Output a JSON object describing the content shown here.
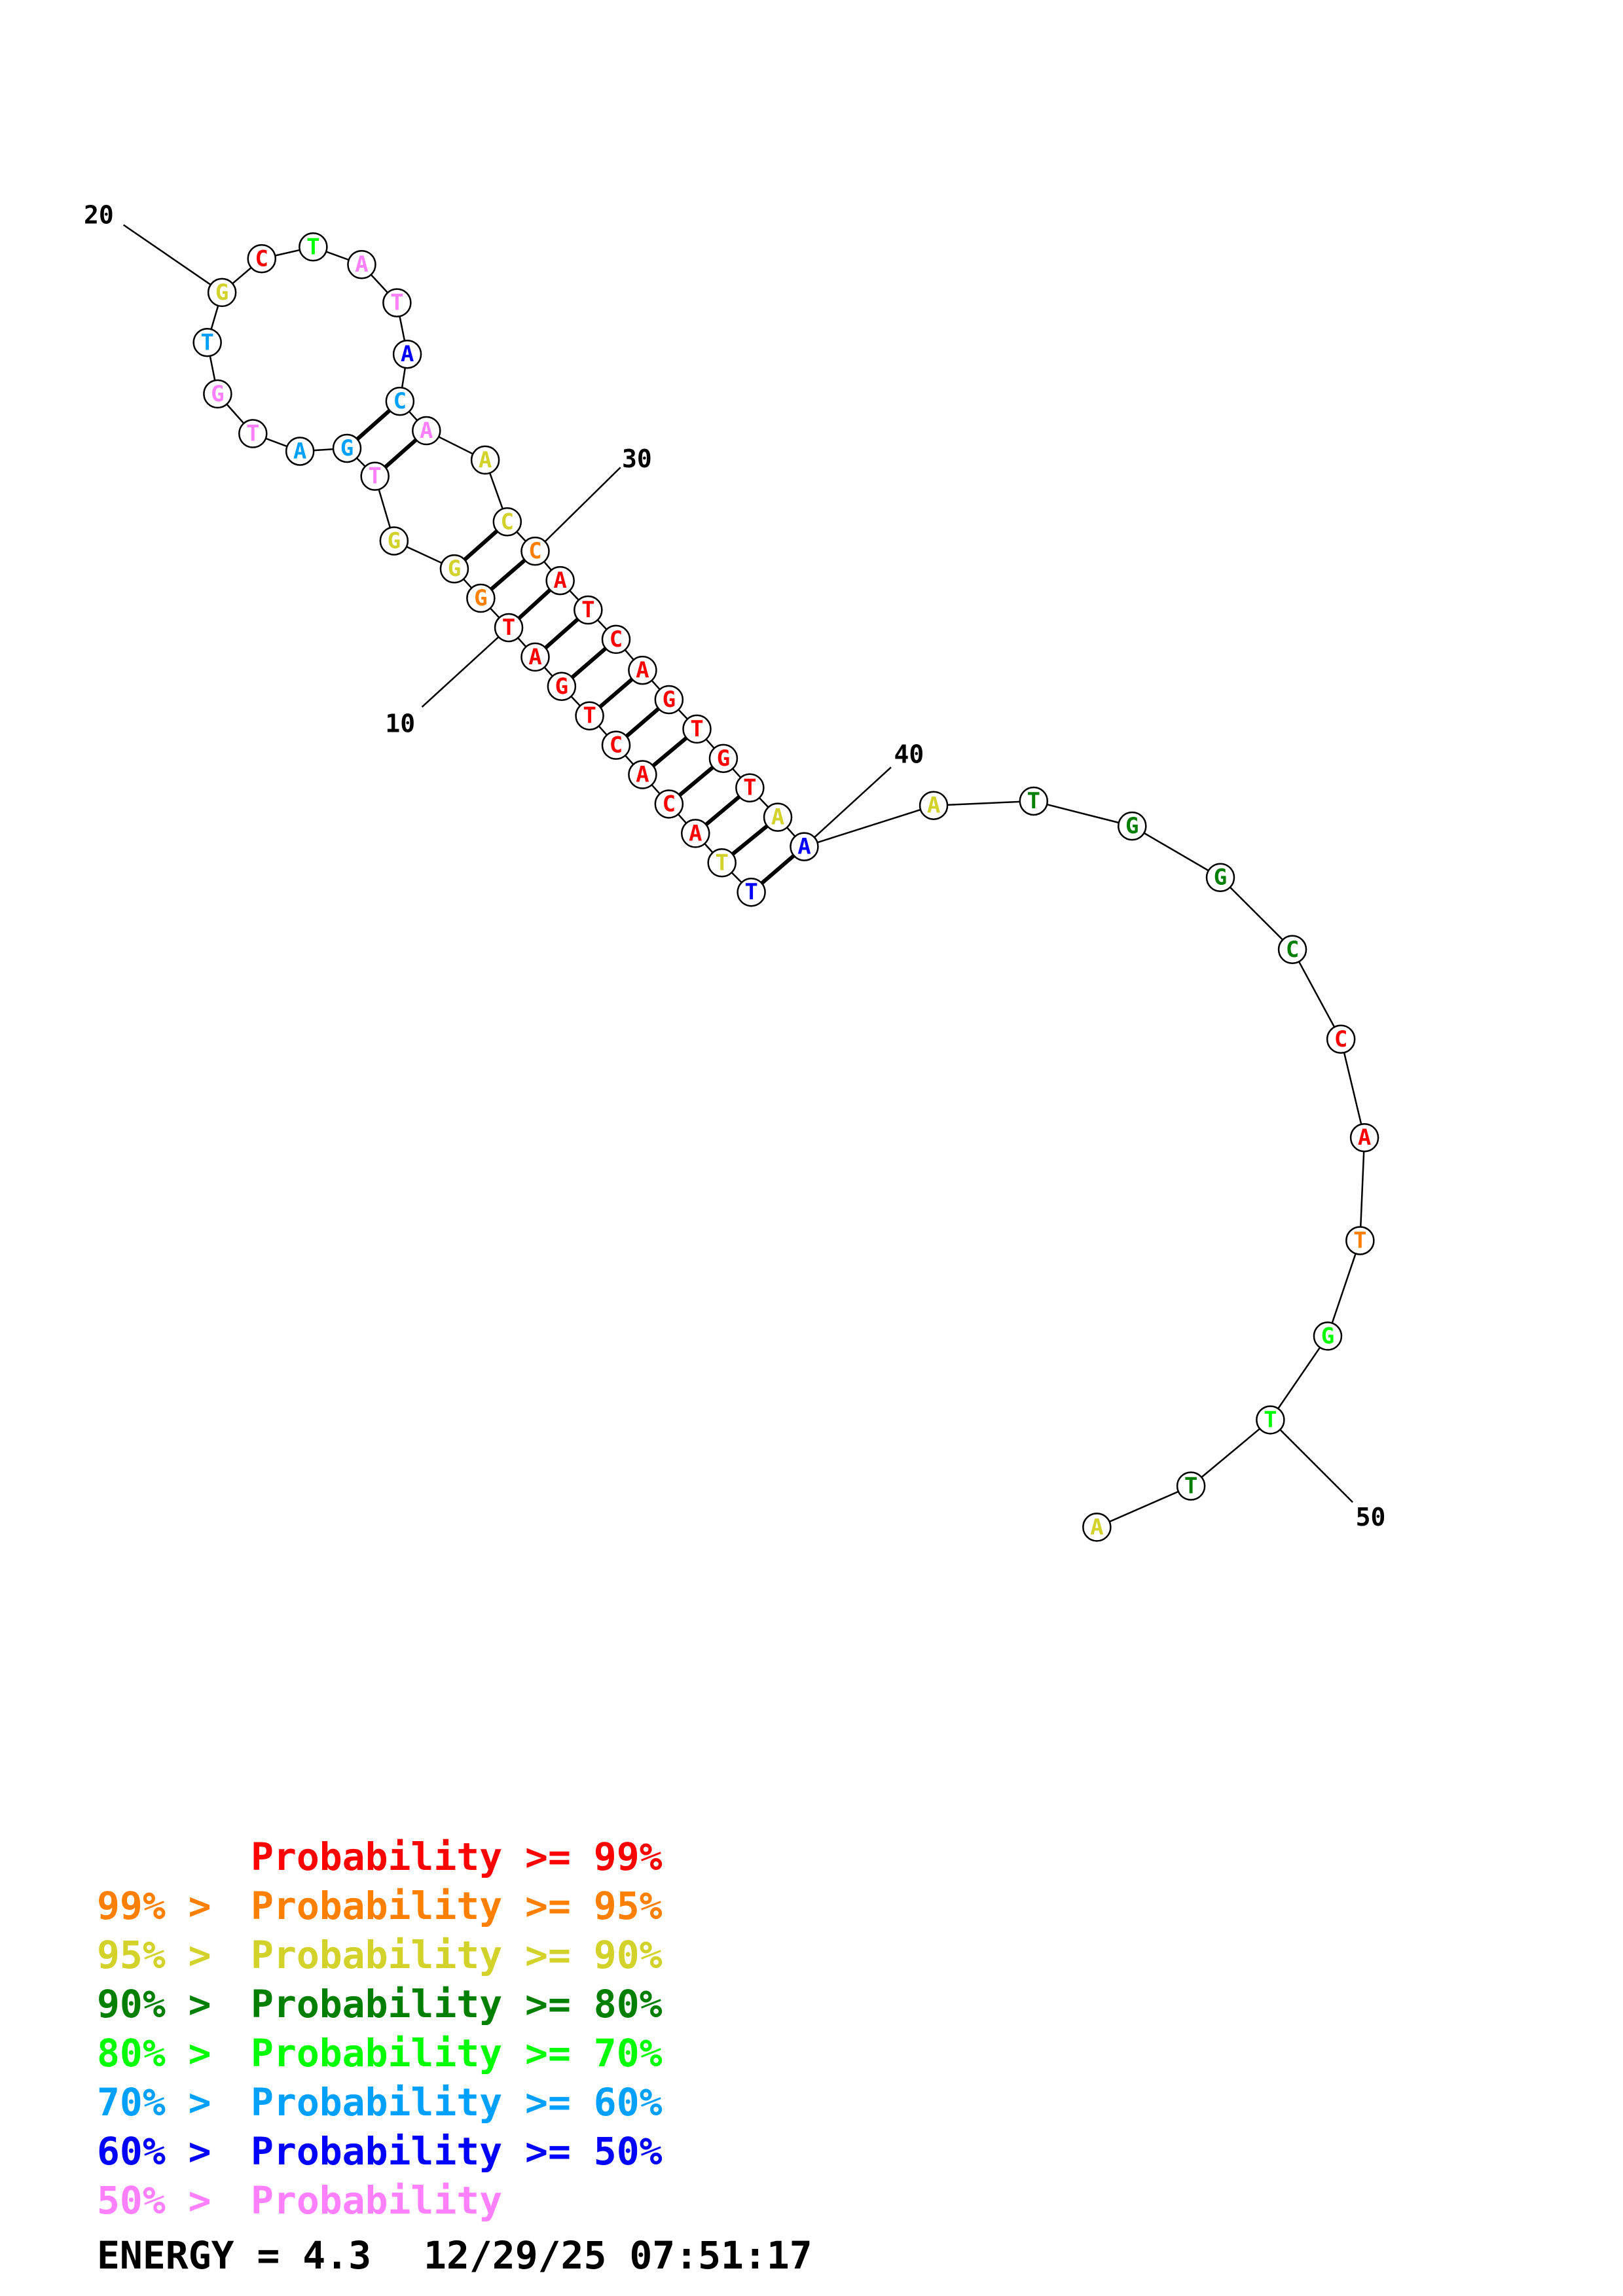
{
  "colors": {
    "p99": "#ff0000",
    "p95": "#ff7f00",
    "p90": "#d2d22a",
    "p80": "#007f00",
    "p70": "#00ff00",
    "p60": "#00a0ff",
    "p50": "#0000ff",
    "plow": "#ff80ff"
  },
  "nucleotides": [
    {
      "i": 1,
      "base": "T",
      "conf": "p50"
    },
    {
      "i": 2,
      "base": "T",
      "conf": "p90"
    },
    {
      "i": 3,
      "base": "A",
      "conf": "p99"
    },
    {
      "i": 4,
      "base": "C",
      "conf": "p99"
    },
    {
      "i": 5,
      "base": "A",
      "conf": "p99"
    },
    {
      "i": 6,
      "base": "C",
      "conf": "p99"
    },
    {
      "i": 7,
      "base": "T",
      "conf": "p99"
    },
    {
      "i": 8,
      "base": "G",
      "conf": "p99"
    },
    {
      "i": 9,
      "base": "A",
      "conf": "p99"
    },
    {
      "i": 10,
      "base": "T",
      "conf": "p99"
    },
    {
      "i": 11,
      "base": "G",
      "conf": "p95"
    },
    {
      "i": 12,
      "base": "G",
      "conf": "p90"
    },
    {
      "i": 13,
      "base": "G",
      "conf": "p90"
    },
    {
      "i": 14,
      "base": "T",
      "conf": "plow"
    },
    {
      "i": 15,
      "base": "G",
      "conf": "p60"
    },
    {
      "i": 16,
      "base": "A",
      "conf": "p60"
    },
    {
      "i": 17,
      "base": "T",
      "conf": "plow"
    },
    {
      "i": 18,
      "base": "G",
      "conf": "plow"
    },
    {
      "i": 19,
      "base": "T",
      "conf": "p60"
    },
    {
      "i": 20,
      "base": "G",
      "conf": "p90"
    },
    {
      "i": 21,
      "base": "C",
      "conf": "p99"
    },
    {
      "i": 22,
      "base": "T",
      "conf": "p70"
    },
    {
      "i": 23,
      "base": "A",
      "conf": "plow"
    },
    {
      "i": 24,
      "base": "T",
      "conf": "plow"
    },
    {
      "i": 25,
      "base": "A",
      "conf": "p50"
    },
    {
      "i": 26,
      "base": "C",
      "conf": "p60"
    },
    {
      "i": 27,
      "base": "A",
      "conf": "plow"
    },
    {
      "i": 28,
      "base": "A",
      "conf": "p90"
    },
    {
      "i": 29,
      "base": "C",
      "conf": "p90"
    },
    {
      "i": 30,
      "base": "C",
      "conf": "p95"
    },
    {
      "i": 31,
      "base": "A",
      "conf": "p99"
    },
    {
      "i": 32,
      "base": "T",
      "conf": "p99"
    },
    {
      "i": 33,
      "base": "C",
      "conf": "p99"
    },
    {
      "i": 34,
      "base": "A",
      "conf": "p99"
    },
    {
      "i": 35,
      "base": "G",
      "conf": "p99"
    },
    {
      "i": 36,
      "base": "T",
      "conf": "p99"
    },
    {
      "i": 37,
      "base": "G",
      "conf": "p99"
    },
    {
      "i": 38,
      "base": "T",
      "conf": "p99"
    },
    {
      "i": 39,
      "base": "A",
      "conf": "p90"
    },
    {
      "i": 40,
      "base": "A",
      "conf": "p50"
    },
    {
      "i": 41,
      "base": "A",
      "conf": "p90"
    },
    {
      "i": 42,
      "base": "T",
      "conf": "p80"
    },
    {
      "i": 43,
      "base": "G",
      "conf": "p80"
    },
    {
      "i": 44,
      "base": "G",
      "conf": "p80"
    },
    {
      "i": 45,
      "base": "C",
      "conf": "p80"
    },
    {
      "i": 46,
      "base": "C",
      "conf": "p99"
    },
    {
      "i": 47,
      "base": "A",
      "conf": "p99"
    },
    {
      "i": 48,
      "base": "T",
      "conf": "p95"
    },
    {
      "i": 49,
      "base": "G",
      "conf": "p70"
    },
    {
      "i": 50,
      "base": "T",
      "conf": "p70"
    },
    {
      "i": 51,
      "base": "T",
      "conf": "p80"
    },
    {
      "i": 52,
      "base": "A",
      "conf": "p90"
    }
  ],
  "pairs": [
    [
      1,
      40
    ],
    [
      2,
      39
    ],
    [
      3,
      38
    ],
    [
      4,
      37
    ],
    [
      5,
      36
    ],
    [
      6,
      35
    ],
    [
      7,
      34
    ],
    [
      8,
      33
    ],
    [
      9,
      32
    ],
    [
      10,
      31
    ],
    [
      11,
      30
    ],
    [
      12,
      29
    ],
    [
      14,
      27
    ],
    [
      15,
      26
    ]
  ],
  "position_labels": [
    {
      "pos": 10,
      "text": "10"
    },
    {
      "pos": 20,
      "text": "20"
    },
    {
      "pos": 30,
      "text": "30"
    },
    {
      "pos": 40,
      "text": "40"
    },
    {
      "pos": 50,
      "text": "50"
    }
  ],
  "legend": [
    {
      "prefix": "",
      "label": "Probability >= 99%",
      "color": "p99"
    },
    {
      "prefix": "99% > ",
      "label": "Probability >= 95%",
      "color": "p95"
    },
    {
      "prefix": "95% > ",
      "label": "Probability >= 90%",
      "color": "p90"
    },
    {
      "prefix": "90% > ",
      "label": "Probability >= 80%",
      "color": "p80"
    },
    {
      "prefix": "80% > ",
      "label": "Probability >= 70%",
      "color": "p70"
    },
    {
      "prefix": "70% > ",
      "label": "Probability >= 60%",
      "color": "p60"
    },
    {
      "prefix": "60% > ",
      "label": "Probability >= 50%",
      "color": "p50"
    },
    {
      "prefix": "50% > ",
      "label": "Probability",
      "color": "plow"
    }
  ],
  "footer": {
    "energy": "ENERGY = 4.3",
    "date": "12/29/25",
    "time": "07:51:17"
  }
}
